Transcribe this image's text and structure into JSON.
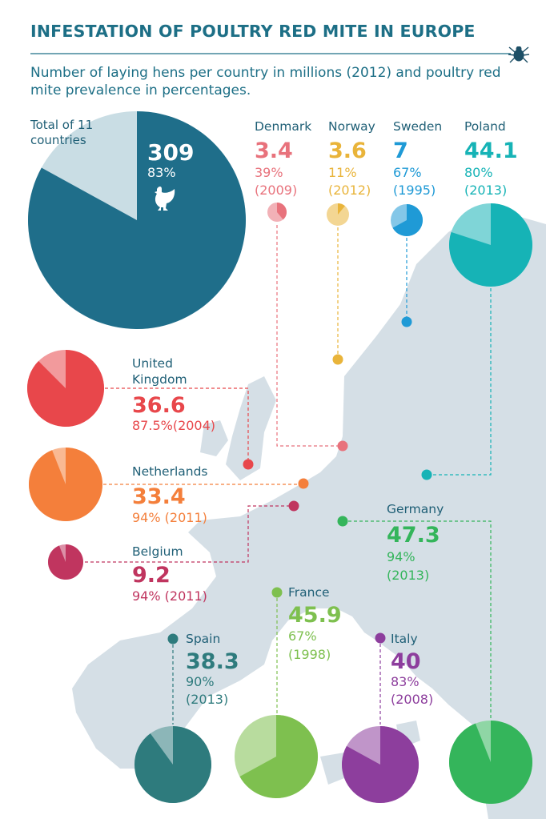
{
  "title": "INFESTATION OF POULTRY RED MITE IN EUROPE",
  "subtitle": "Number of laying hens per country in millions (2012) and poultry red mite prevalence in percentages.",
  "total": {
    "label": "Total of 11 countries",
    "hens": "309",
    "prevalence": "83%",
    "color": "#1f6e8a",
    "light": "#c9dde4"
  },
  "countries": [
    {
      "key": "denmark",
      "name": "Denmark",
      "hens": "3.4",
      "prevalence": "39%",
      "year": "(2009)",
      "color": "#e8727c"
    },
    {
      "key": "norway",
      "name": "Norway",
      "hens": "3.6",
      "prevalence": "11%",
      "year": "(2012)",
      "color": "#e9b43a"
    },
    {
      "key": "sweden",
      "name": "Sweden",
      "hens": "7",
      "prevalence": "67%",
      "year": "(1995)",
      "color": "#1f9ad6"
    },
    {
      "key": "poland",
      "name": "Poland",
      "hens": "44.1",
      "prevalence": "80%",
      "year": "(2013)",
      "color": "#16b3b6"
    },
    {
      "key": "uk",
      "name": "United Kingdom",
      "name_line1": "United",
      "name_line2": "Kingdom",
      "hens": "36.6",
      "prevalence": "87.5%",
      "year": "(2004)",
      "color": "#e8474b"
    },
    {
      "key": "netherlands",
      "name": "Netherlands",
      "hens": "33.4",
      "prevalence": "94%",
      "year": "(2011)",
      "color": "#f47f3b"
    },
    {
      "key": "belgium",
      "name": "Belgium",
      "hens": "9.2",
      "prevalence": "94%",
      "year": "(2011)",
      "color": "#c0355f"
    },
    {
      "key": "germany",
      "name": "Germany",
      "hens": "47.3",
      "prevalence": "94%",
      "year": "(2013)",
      "color": "#34b55b"
    },
    {
      "key": "france",
      "name": "France",
      "hens": "45.9",
      "prevalence": "67%",
      "year": "(1998)",
      "color": "#7ec04f"
    },
    {
      "key": "spain",
      "name": "Spain",
      "hens": "38.3",
      "prevalence": "90%",
      "year": "(2013)",
      "color": "#2e7b7d"
    },
    {
      "key": "italy",
      "name": "Italy",
      "hens": "40",
      "prevalence": "83%",
      "year": "(2008)",
      "color": "#8d3e9d"
    }
  ],
  "chart_data": {
    "type": "pie",
    "title": "INFESTATION OF POULTRY RED MITE IN EUROPE",
    "subtitle": "Number of laying hens per country in millions (2012) and poultry red mite prevalence in percentages.",
    "total": {
      "label": "Total of 11 countries",
      "hens_millions": 309,
      "prevalence_pct": 83
    },
    "series": [
      {
        "name": "Denmark",
        "hens_millions": 3.4,
        "prevalence_pct": 39,
        "year": 2009
      },
      {
        "name": "Norway",
        "hens_millions": 3.6,
        "prevalence_pct": 11,
        "year": 2012
      },
      {
        "name": "Sweden",
        "hens_millions": 7,
        "prevalence_pct": 67,
        "year": 1995
      },
      {
        "name": "Poland",
        "hens_millions": 44.1,
        "prevalence_pct": 80,
        "year": 2013
      },
      {
        "name": "United Kingdom",
        "hens_millions": 36.6,
        "prevalence_pct": 87.5,
        "year": 2004
      },
      {
        "name": "Netherlands",
        "hens_millions": 33.4,
        "prevalence_pct": 94,
        "year": 2011
      },
      {
        "name": "Belgium",
        "hens_millions": 9.2,
        "prevalence_pct": 94,
        "year": 2011
      },
      {
        "name": "Germany",
        "hens_millions": 47.3,
        "prevalence_pct": 94,
        "year": 2013
      },
      {
        "name": "France",
        "hens_millions": 45.9,
        "prevalence_pct": 67,
        "year": 1998
      },
      {
        "name": "Spain",
        "hens_millions": 38.3,
        "prevalence_pct": 90,
        "year": 2013
      },
      {
        "name": "Italy",
        "hens_millions": 40,
        "prevalence_pct": 83,
        "year": 2008
      }
    ]
  }
}
